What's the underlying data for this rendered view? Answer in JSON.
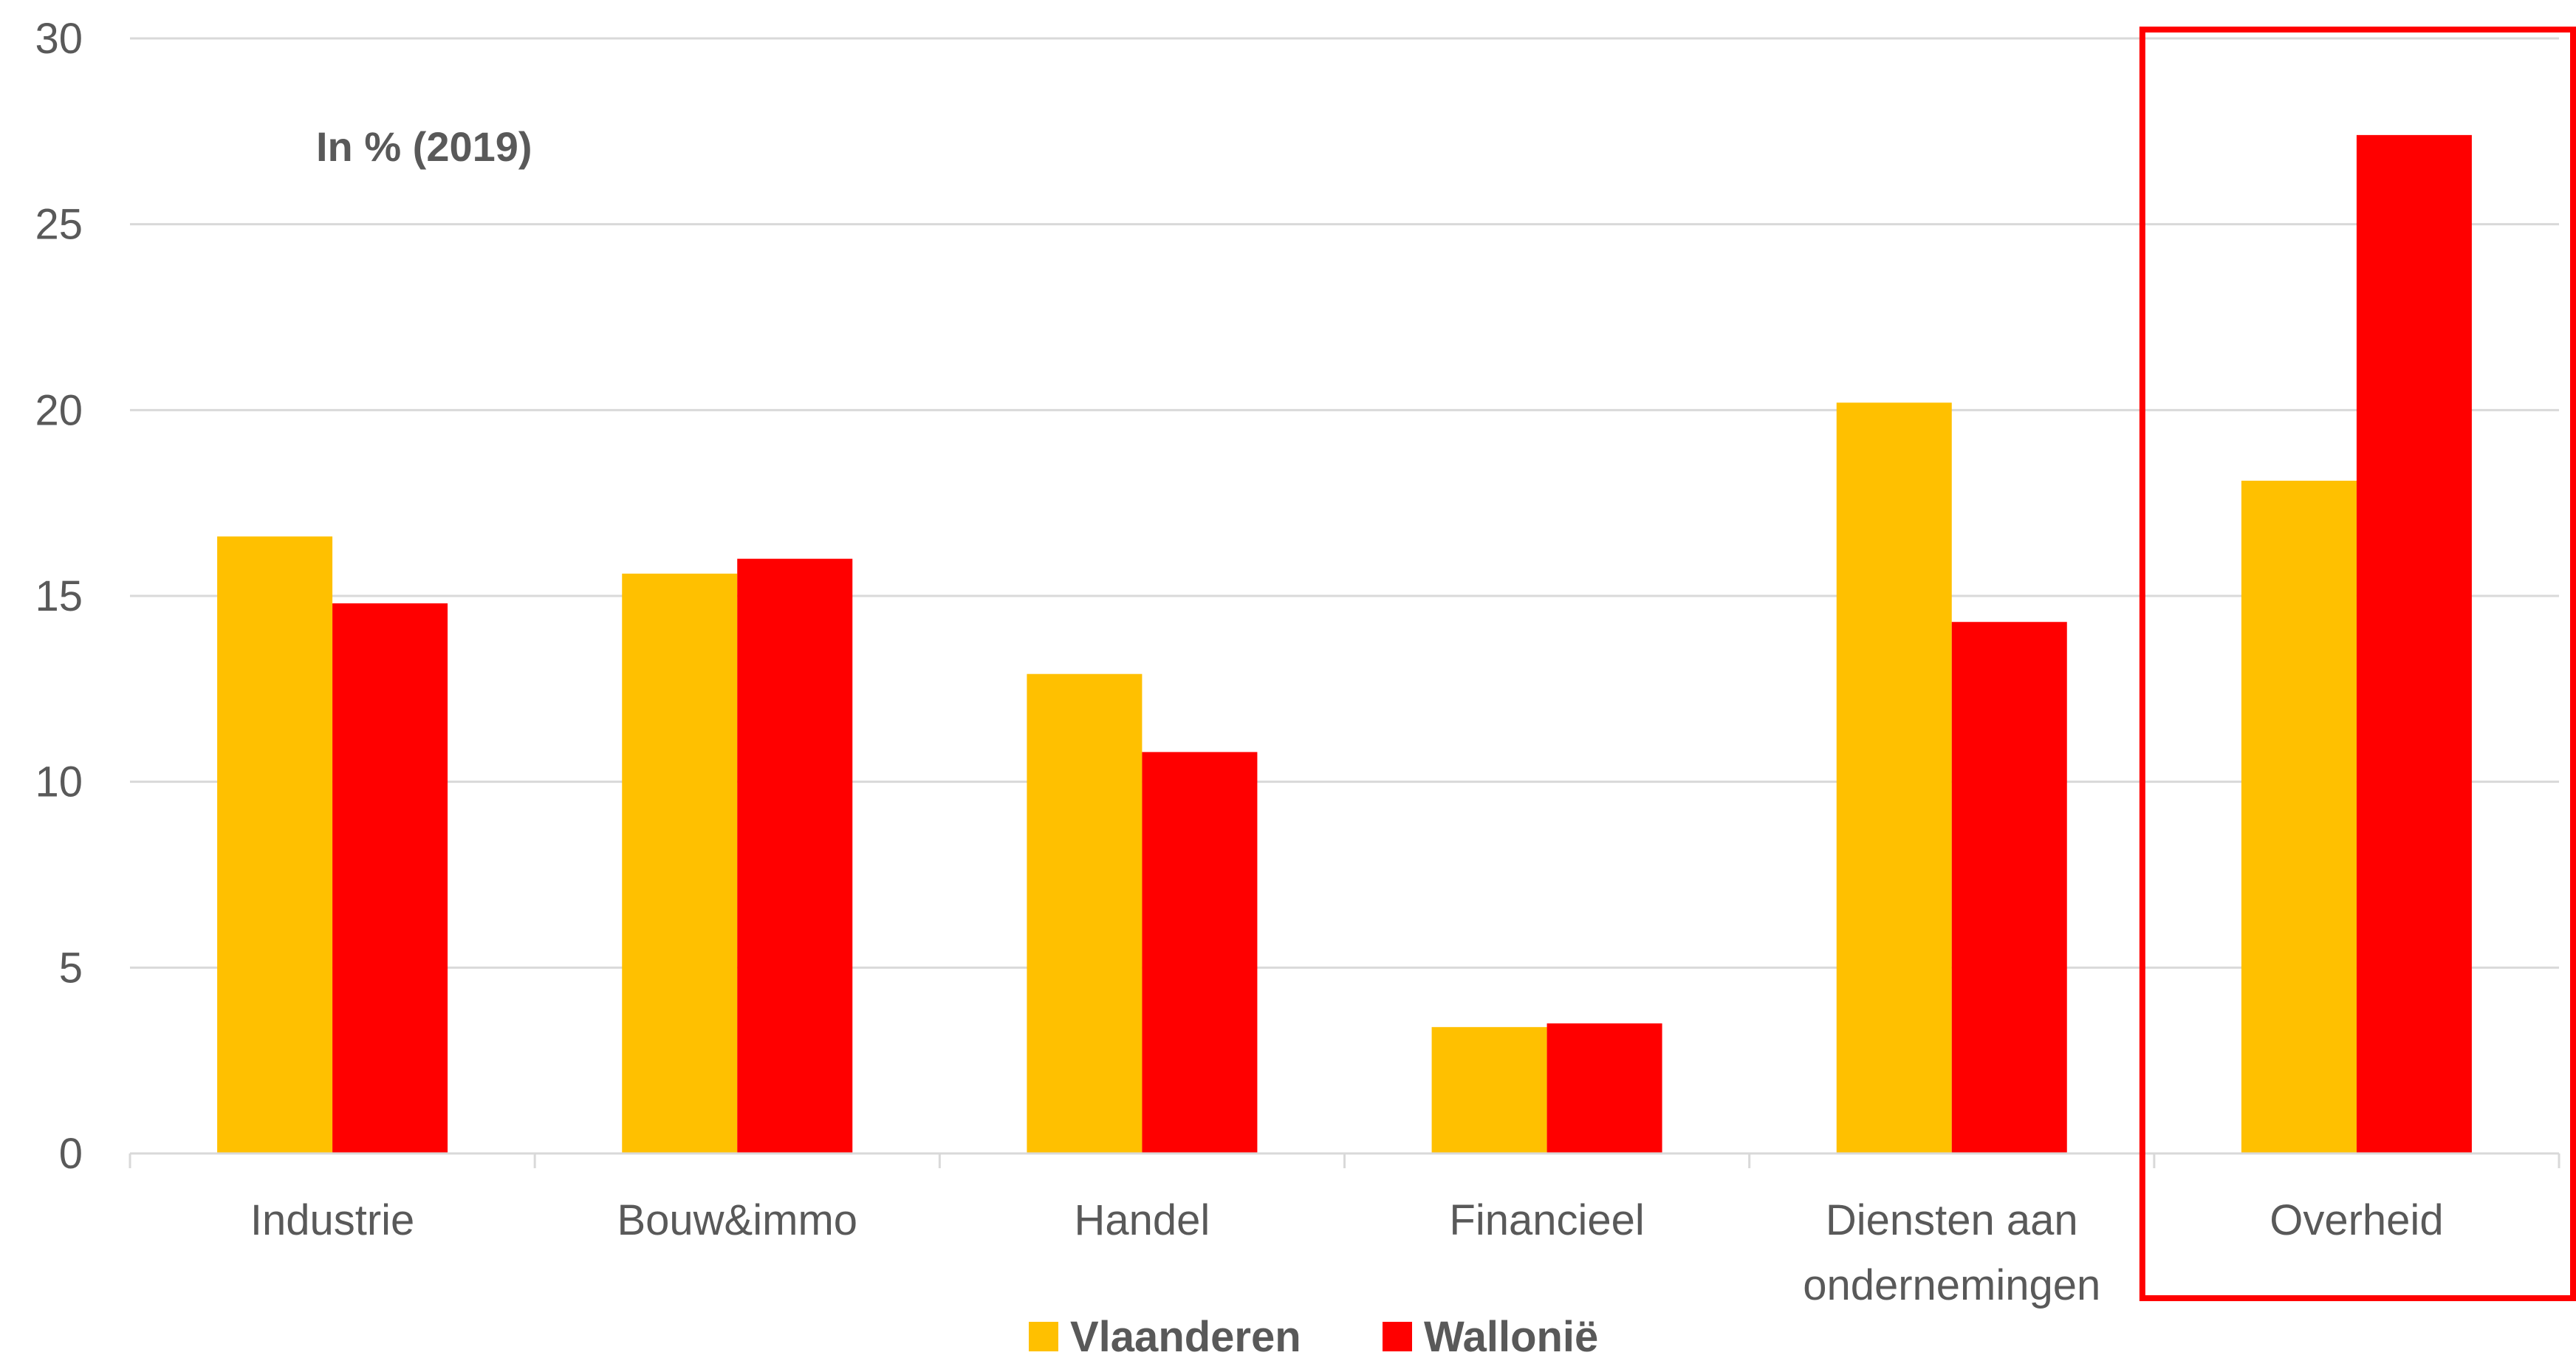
{
  "chart_data": {
    "type": "bar",
    "subtitle": "In % (2019)",
    "categories": [
      [
        "Industrie"
      ],
      [
        "Bouw&immo"
      ],
      [
        "Handel"
      ],
      [
        "Financieel"
      ],
      [
        "Diensten aan",
        "ondernemingen"
      ],
      [
        "Overheid"
      ]
    ],
    "series": [
      {
        "name": "Vlaanderen",
        "color": "#FFC000",
        "values": [
          16.6,
          15.6,
          12.9,
          3.4,
          20.2,
          18.1
        ]
      },
      {
        "name": "Wallonië",
        "color": "#FF0000",
        "values": [
          14.8,
          16.0,
          10.8,
          3.5,
          14.3,
          27.4
        ]
      }
    ],
    "ylim": [
      0,
      30
    ],
    "yticks": [
      0,
      5,
      10,
      15,
      20,
      25,
      30
    ],
    "grid": true,
    "legend_position": "bottom",
    "highlight": {
      "category_index": 5,
      "color": "#FF0000"
    }
  }
}
